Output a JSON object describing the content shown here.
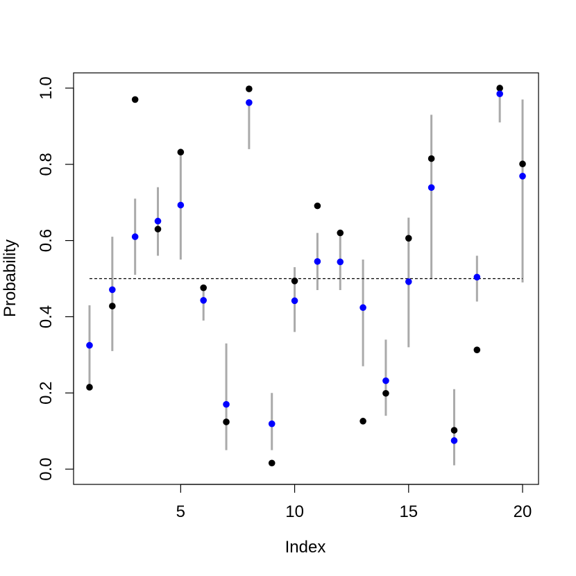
{
  "chart_data": {
    "type": "scatter",
    "title": "",
    "xlabel": "Index",
    "ylabel": "Probability",
    "xlim": [
      0.3,
      20.7
    ],
    "ylim": [
      -0.04,
      1.04
    ],
    "x_ticks": [
      5,
      10,
      15,
      20
    ],
    "y_ticks": [
      0.0,
      0.2,
      0.4,
      0.6,
      0.8,
      1.0
    ],
    "reference_line": {
      "y": 0.5,
      "x_from": 1,
      "x_to": 20,
      "style": "dashed",
      "color": "#000000"
    },
    "intervals": {
      "color": "#aaaaaa",
      "x": [
        1,
        2,
        3,
        4,
        5,
        6,
        7,
        8,
        9,
        10,
        11,
        12,
        13,
        14,
        15,
        16,
        17,
        18,
        19,
        20
      ],
      "lower": [
        0.22,
        0.31,
        0.51,
        0.56,
        0.55,
        0.39,
        0.05,
        0.84,
        0.05,
        0.36,
        0.47,
        0.47,
        0.27,
        0.14,
        0.32,
        0.5,
        0.01,
        0.44,
        0.91,
        0.49
      ],
      "upper": [
        0.43,
        0.61,
        0.71,
        0.74,
        0.83,
        0.47,
        0.33,
        0.96,
        0.2,
        0.53,
        0.62,
        0.62,
        0.55,
        0.34,
        0.66,
        0.93,
        0.21,
        0.56,
        0.99,
        0.97
      ]
    },
    "series": [
      {
        "color": "#000000",
        "x": [
          1,
          2,
          3,
          4,
          5,
          6,
          7,
          8,
          9,
          10,
          11,
          12,
          13,
          14,
          15,
          16,
          17,
          18,
          19,
          20
        ],
        "y": [
          0.215,
          0.428,
          0.97,
          0.63,
          0.832,
          0.476,
          0.124,
          0.998,
          0.016,
          0.494,
          0.691,
          0.62,
          0.126,
          0.199,
          0.606,
          0.815,
          0.102,
          0.313,
          1.0,
          0.801
        ]
      },
      {
        "color": "#0000ff",
        "x": [
          1,
          2,
          3,
          4,
          5,
          6,
          7,
          8,
          9,
          10,
          11,
          12,
          13,
          14,
          15,
          16,
          17,
          18,
          19,
          20
        ],
        "y": [
          0.325,
          0.471,
          0.61,
          0.651,
          0.693,
          0.443,
          0.17,
          0.962,
          0.119,
          0.442,
          0.545,
          0.544,
          0.424,
          0.232,
          0.492,
          0.739,
          0.075,
          0.504,
          0.985,
          0.769
        ]
      }
    ]
  }
}
